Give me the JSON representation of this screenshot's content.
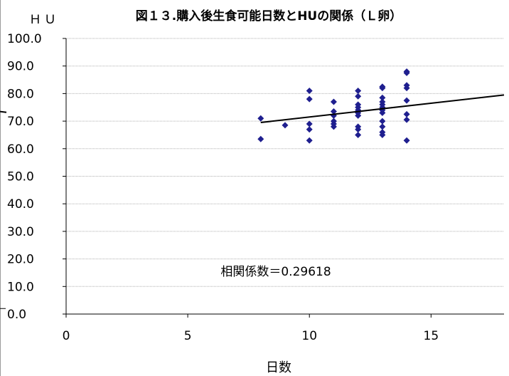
{
  "chart_data": {
    "type": "scatter",
    "title": "図１３.購入後生食可能日数とHUの関係（Ｌ卵）",
    "ylabel": "ＨＵ",
    "xlabel": "日数",
    "xlim": [
      0,
      18
    ],
    "ylim": [
      0,
      100
    ],
    "x_ticks": [
      "0",
      "5",
      "10",
      "15"
    ],
    "y_ticks": [
      "0.0",
      "10.0",
      "20.0",
      "30.0",
      "40.0",
      "50.0",
      "60.0",
      "70.0",
      "80.0",
      "90.0",
      "100.0"
    ],
    "grid": true,
    "point_color": "#1f1f8f",
    "line_color": "#000000",
    "annotation": "相関係数＝0.29618",
    "points": [
      [
        8,
        71.0
      ],
      [
        8,
        63.5
      ],
      [
        9,
        68.5
      ],
      [
        10,
        81.0
      ],
      [
        10,
        78.0
      ],
      [
        10,
        69.0
      ],
      [
        10,
        67.0
      ],
      [
        10,
        63.0
      ],
      [
        11,
        77.0
      ],
      [
        11,
        73.5
      ],
      [
        11,
        72.0
      ],
      [
        11,
        70.0
      ],
      [
        11,
        69.0
      ],
      [
        11,
        68.0
      ],
      [
        12,
        81.0
      ],
      [
        12,
        79.0
      ],
      [
        12,
        76.0
      ],
      [
        12,
        75.0
      ],
      [
        12,
        74.0
      ],
      [
        12,
        73.0
      ],
      [
        12,
        72.0
      ],
      [
        12,
        68.0
      ],
      [
        12,
        67.0
      ],
      [
        12,
        65.0
      ],
      [
        13,
        82.5
      ],
      [
        13,
        82.0
      ],
      [
        13,
        78.5
      ],
      [
        13,
        77.0
      ],
      [
        13,
        76.0
      ],
      [
        13,
        75.0
      ],
      [
        13,
        74.0
      ],
      [
        13,
        73.0
      ],
      [
        13,
        70.0
      ],
      [
        13,
        68.0
      ],
      [
        13,
        66.0
      ],
      [
        13,
        65.0
      ],
      [
        14,
        88.0
      ],
      [
        14,
        87.5
      ],
      [
        14,
        83.0
      ],
      [
        14,
        82.0
      ],
      [
        14,
        77.5
      ],
      [
        14,
        72.5
      ],
      [
        14,
        70.5
      ],
      [
        14,
        63.0
      ]
    ],
    "trendline": {
      "x": [
        8,
        18
      ],
      "y": [
        69.5,
        79.5
      ]
    }
  }
}
